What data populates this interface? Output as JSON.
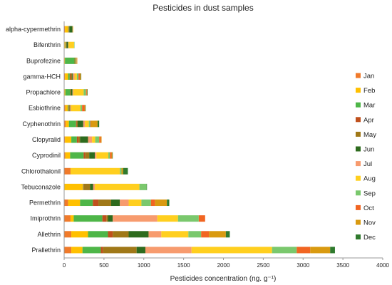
{
  "chart_data": {
    "type": "bar",
    "orientation": "horizontal",
    "stacked": true,
    "title": "Pesticides in dust samples",
    "xlabel": "Pesticides concentration (ng. g⁻¹)",
    "ylabel": "",
    "xlim": [
      0,
      4000
    ],
    "xticks": [
      0,
      500,
      1000,
      1500,
      2000,
      2500,
      3000,
      3500,
      4000
    ],
    "grid": false,
    "legend_position": "right",
    "categories": [
      "alpha-cypermethrin",
      "Bifenthrin",
      "Buprofezine",
      "gamma-HCH",
      "Propachlore",
      "Esbiothrine",
      "Cyphenothrin",
      "Clopyralid",
      "Cyprodinil",
      "Chlorothalonil",
      "Tebuconazole",
      "Permethrin",
      "Imiprothrin",
      "Allethrin",
      "Prallethrin"
    ],
    "series": [
      {
        "name": "Jan",
        "color": "#F07A2A",
        "values": [
          10,
          5,
          5,
          10,
          5,
          15,
          20,
          10,
          15,
          80,
          5,
          50,
          80,
          90,
          90
        ]
      },
      {
        "name": "Feb",
        "color": "#FFC000",
        "values": [
          40,
          10,
          5,
          40,
          10,
          30,
          40,
          80,
          60,
          0,
          230,
          150,
          40,
          210,
          140
        ]
      },
      {
        "name": "Mar",
        "color": "#4EB648",
        "values": [
          5,
          5,
          120,
          20,
          60,
          10,
          90,
          70,
          170,
          0,
          5,
          160,
          360,
          250,
          230
        ]
      },
      {
        "name": "Apr",
        "color": "#C0501C",
        "values": [
          5,
          5,
          0,
          10,
          5,
          5,
          10,
          20,
          20,
          0,
          5,
          70,
          50,
          60,
          30
        ]
      },
      {
        "name": "May",
        "color": "#A07818",
        "values": [
          5,
          5,
          10,
          20,
          5,
          10,
          10,
          20,
          50,
          0,
          80,
          160,
          20,
          200,
          420
        ]
      },
      {
        "name": "Jun",
        "color": "#2E6B1E",
        "values": [
          40,
          20,
          5,
          10,
          20,
          5,
          70,
          100,
          70,
          0,
          40,
          110,
          60,
          250,
          110
        ]
      },
      {
        "name": "Jul",
        "color": "#F79B6E",
        "values": [
          5,
          5,
          0,
          20,
          10,
          10,
          20,
          50,
          20,
          0,
          20,
          110,
          560,
          160,
          580
        ]
      },
      {
        "name": "Aug",
        "color": "#FFCF1F",
        "values": [
          5,
          70,
          5,
          30,
          130,
          120,
          50,
          40,
          150,
          620,
          560,
          160,
          260,
          340,
          1010
        ]
      },
      {
        "name": "Sep",
        "color": "#7AC86D",
        "values": [
          0,
          5,
          5,
          20,
          30,
          20,
          20,
          50,
          20,
          20,
          90,
          120,
          260,
          160,
          310
        ]
      },
      {
        "name": "Oct",
        "color": "#F16522",
        "values": [
          0,
          0,
          5,
          20,
          10,
          30,
          10,
          20,
          20,
          0,
          0,
          50,
          80,
          100,
          170
        ]
      },
      {
        "name": "Nov",
        "color": "#D99A10",
        "values": [
          0,
          0,
          5,
          10,
          5,
          10,
          80,
          10,
          10,
          20,
          0,
          150,
          0,
          210,
          250
        ]
      },
      {
        "name": "Dec",
        "color": "#2F7A2D",
        "values": [
          0,
          0,
          0,
          5,
          5,
          5,
          20,
          0,
          5,
          60,
          5,
          30,
          0,
          50,
          60
        ]
      }
    ]
  }
}
